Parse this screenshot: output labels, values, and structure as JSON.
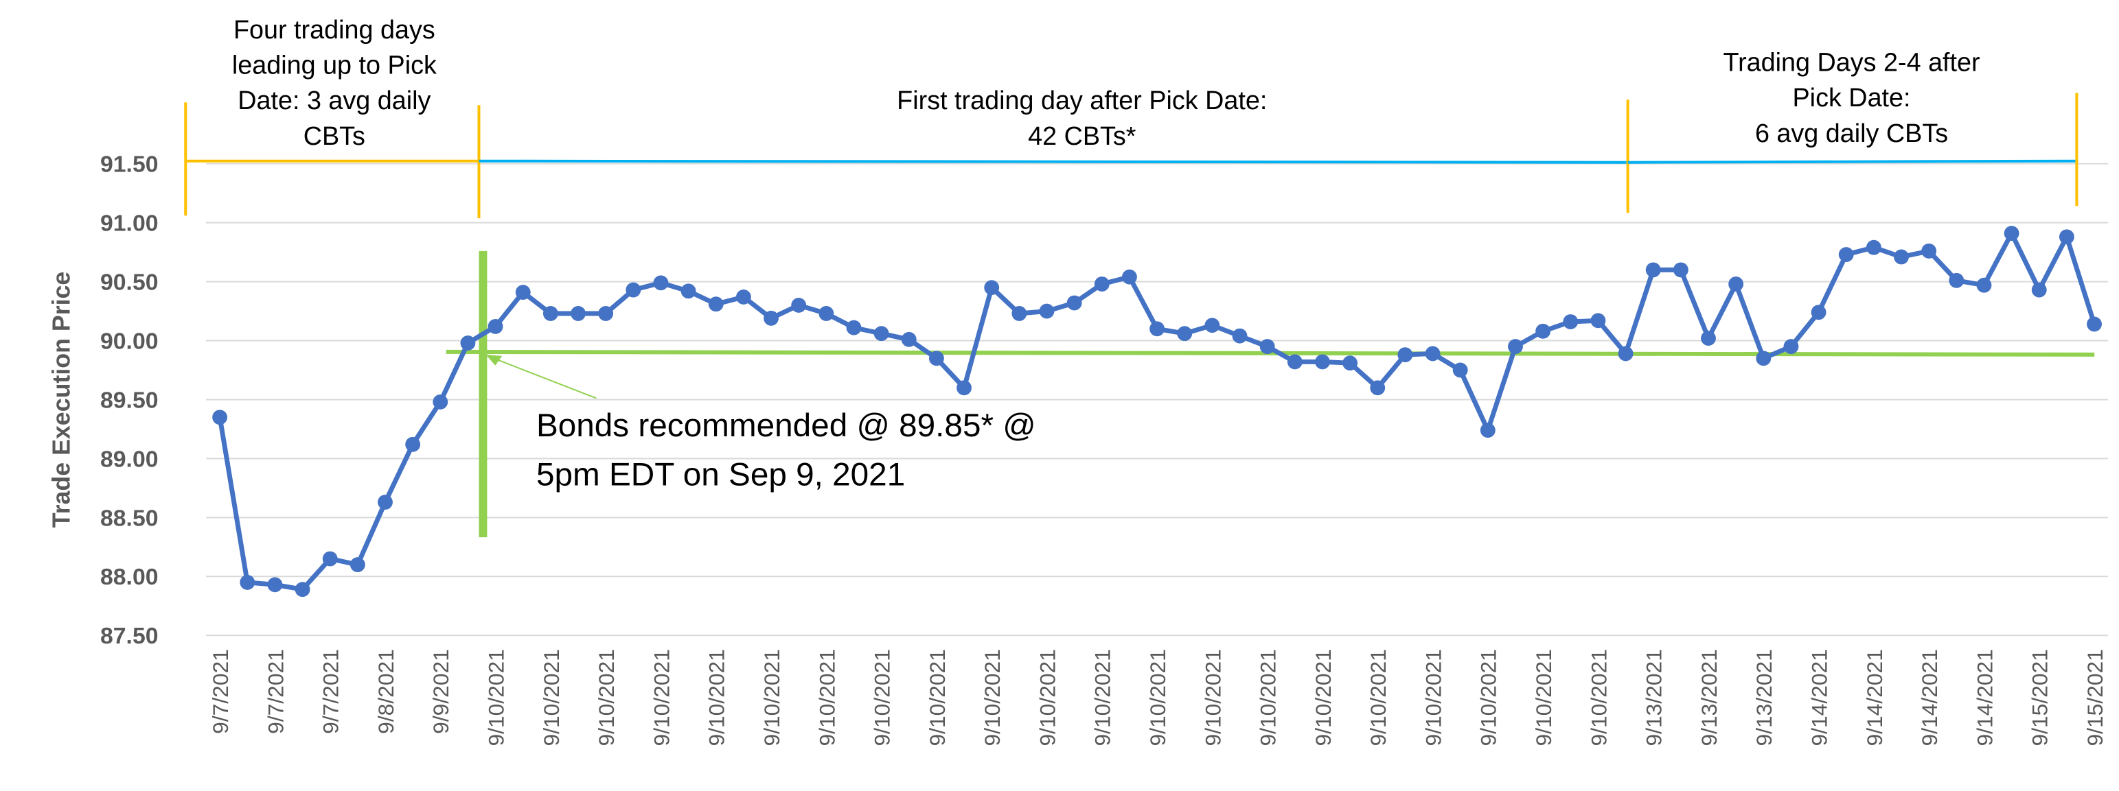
{
  "chart_data": {
    "type": "line",
    "y_label": "Trade Execution Price",
    "annotations": {
      "pre_pick": [
        "Four trading days",
        "leading up to Pick",
        "Date: 3 avg daily",
        "CBTs"
      ],
      "first_day": [
        "First trading day after Pick Date:",
        "42 CBTs*"
      ],
      "later_days": [
        "Trading Days 2-4 after",
        "Pick Date:",
        "6 avg daily CBTs"
      ],
      "recommendation": [
        "Bonds recommended @ 89.85* @",
        "5pm EDT on Sep 9, 2021"
      ]
    },
    "categories": [
      "9/7/2021",
      null,
      "9/7/2021",
      null,
      "9/7/2021",
      null,
      "9/8/2021",
      null,
      "9/9/2021",
      null,
      "9/10/2021",
      null,
      "9/10/2021",
      null,
      "9/10/2021",
      null,
      "9/10/2021",
      null,
      "9/10/2021",
      null,
      "9/10/2021",
      null,
      "9/10/2021",
      null,
      "9/10/2021",
      null,
      "9/10/2021",
      null,
      "9/10/2021",
      null,
      "9/10/2021",
      null,
      "9/10/2021",
      null,
      "9/10/2021",
      null,
      "9/10/2021",
      null,
      "9/10/2021",
      null,
      "9/10/2021",
      null,
      "9/10/2021",
      null,
      "9/10/2021",
      null,
      "9/10/2021",
      null,
      "9/10/2021",
      null,
      "9/10/2021",
      null,
      "9/13/2021",
      null,
      "9/13/2021",
      null,
      "9/13/2021",
      null,
      "9/14/2021",
      null,
      "9/14/2021",
      null,
      "9/14/2021",
      null,
      "9/14/2021",
      null,
      "9/15/2021",
      null,
      "9/15/2021"
    ],
    "series": [
      {
        "name": "Trade Execution Price",
        "color": "#4472c4",
        "values": [
          89.35,
          87.95,
          87.93,
          87.89,
          88.15,
          88.1,
          88.63,
          89.12,
          89.48,
          89.98,
          90.12,
          90.41,
          90.23,
          90.23,
          90.23,
          90.43,
          90.49,
          90.42,
          90.31,
          90.37,
          90.19,
          90.3,
          90.23,
          90.11,
          90.06,
          90.01,
          89.85,
          89.6,
          90.45,
          90.23,
          90.25,
          90.32,
          90.48,
          90.54,
          90.1,
          90.06,
          90.13,
          90.04,
          89.95,
          89.82,
          89.82,
          89.81,
          89.6,
          89.88,
          89.89,
          89.75,
          89.24,
          89.95,
          90.08,
          90.16,
          90.17,
          89.89,
          90.6,
          90.6,
          90.02,
          90.48,
          89.85,
          89.95,
          90.24,
          90.73,
          90.79,
          90.71,
          90.76,
          90.51,
          90.47,
          90.91,
          90.43,
          90.88,
          90.14
        ]
      }
    ],
    "ylim": [
      87.5,
      91.5
    ],
    "yticks": [
      {
        "value": 87.5,
        "label": "87.50"
      },
      {
        "value": 88,
        "label": "88.00"
      },
      {
        "value": 88.5,
        "label": "88.50"
      },
      {
        "value": 89,
        "label": "89.00"
      },
      {
        "value": 89.5,
        "label": "89.50"
      },
      {
        "value": 90,
        "label": "90.00"
      },
      {
        "value": 90.5,
        "label": "90.50"
      },
      {
        "value": 91,
        "label": "91.00"
      },
      {
        "value": 91.5,
        "label": "91.50"
      }
    ],
    "grid": true
  }
}
